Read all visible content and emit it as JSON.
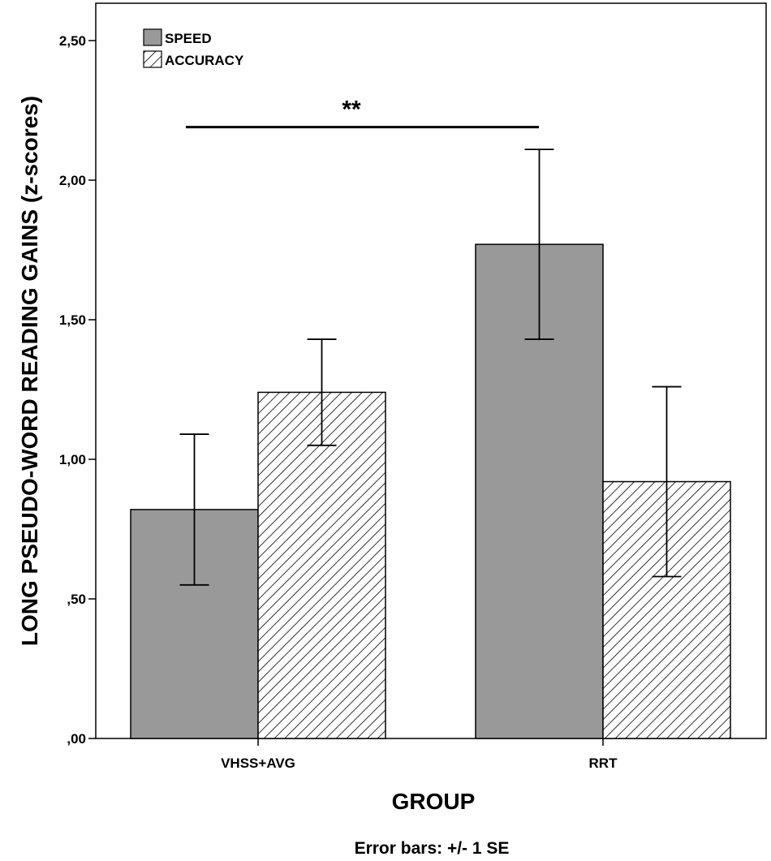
{
  "chart_data": {
    "type": "bar",
    "categories": [
      "VHSS+AVG",
      "RRT"
    ],
    "series": [
      {
        "name": "SPEED",
        "values": [
          0.82,
          1.77
        ],
        "error": [
          0.27,
          0.34
        ],
        "fill": "#999999",
        "pattern": "solid"
      },
      {
        "name": "ACCURACY",
        "values": [
          1.24,
          0.92
        ],
        "error": [
          0.19,
          0.34
        ],
        "fill": "#ffffff",
        "pattern": "hatch"
      }
    ],
    "ylim": [
      0,
      2.6
    ],
    "yticks": [
      0,
      0.5,
      1.0,
      1.5,
      2.0,
      2.5
    ],
    "ytick_labels": [
      ",00",
      ",50",
      "1,00",
      "1,50",
      "2,00",
      "2,50"
    ],
    "xlabel": "GROUP",
    "ylabel": "LONG PSEUDO-WORD READING GAINS (z-scores)",
    "significance": {
      "label": "**",
      "from": "VHSS+AVG",
      "to": "RRT",
      "y": 2.19
    },
    "legend_position": "top-left",
    "footnote": "Error bars: +/- 1 SE"
  }
}
